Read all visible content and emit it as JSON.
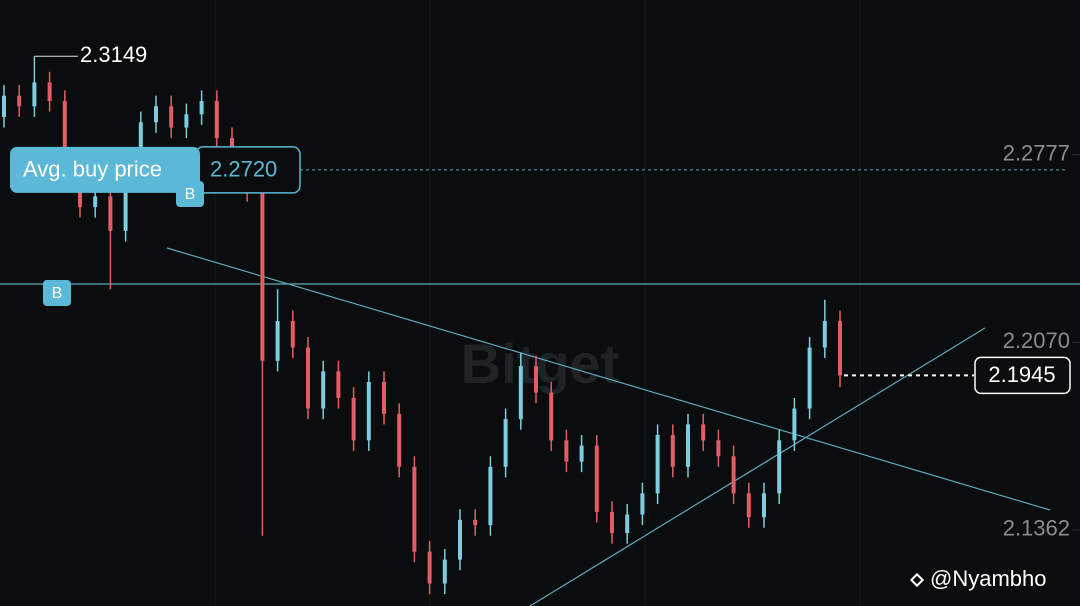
{
  "chart_data": {
    "type": "candlestick",
    "open": [
      2.292,
      2.3,
      2.296,
      2.305,
      2.298,
      2.275,
      2.258,
      2.262,
      2.249,
      2.271,
      2.29,
      2.296,
      2.288,
      2.293,
      2.298,
      2.284,
      2.27,
      2.264,
      2.2,
      2.215,
      2.205,
      2.182,
      2.196,
      2.186,
      2.17,
      2.192,
      2.18,
      2.16,
      2.128,
      2.116,
      2.125,
      2.14,
      2.138,
      2.16,
      2.178,
      2.198,
      2.188,
      2.17,
      2.162,
      2.168,
      2.143,
      2.135,
      2.142,
      2.15,
      2.172,
      2.16,
      2.176,
      2.17,
      2.164,
      2.15,
      2.141,
      2.15,
      2.17,
      2.182,
      2.205,
      2.215
    ],
    "high": [
      2.304,
      2.304,
      2.3149,
      2.309,
      2.302,
      2.279,
      2.266,
      2.266,
      2.275,
      2.294,
      2.3,
      2.3,
      2.297,
      2.302,
      2.302,
      2.288,
      2.274,
      2.268,
      2.227,
      2.219,
      2.209,
      2.2,
      2.2,
      2.19,
      2.196,
      2.196,
      2.184,
      2.164,
      2.132,
      2.129,
      2.144,
      2.144,
      2.164,
      2.182,
      2.203,
      2.202,
      2.192,
      2.174,
      2.172,
      2.172,
      2.147,
      2.146,
      2.154,
      2.176,
      2.176,
      2.18,
      2.18,
      2.174,
      2.168,
      2.154,
      2.154,
      2.174,
      2.186,
      2.209,
      2.223,
      2.219
    ],
    "low": [
      2.288,
      2.292,
      2.292,
      2.294,
      2.271,
      2.254,
      2.254,
      2.227,
      2.245,
      2.267,
      2.286,
      2.284,
      2.284,
      2.289,
      2.28,
      2.266,
      2.26,
      2.134,
      2.196,
      2.201,
      2.178,
      2.178,
      2.182,
      2.166,
      2.166,
      2.176,
      2.156,
      2.124,
      2.112,
      2.112,
      2.121,
      2.134,
      2.134,
      2.156,
      2.174,
      2.184,
      2.166,
      2.158,
      2.158,
      2.139,
      2.131,
      2.131,
      2.138,
      2.146,
      2.156,
      2.156,
      2.166,
      2.16,
      2.146,
      2.137,
      2.137,
      2.146,
      2.166,
      2.178,
      2.201,
      2.19
    ],
    "close": [
      2.3,
      2.296,
      2.305,
      2.298,
      2.275,
      2.258,
      2.262,
      2.249,
      2.271,
      2.29,
      2.296,
      2.288,
      2.293,
      2.298,
      2.284,
      2.27,
      2.264,
      2.2,
      2.215,
      2.205,
      2.182,
      2.196,
      2.186,
      2.17,
      2.192,
      2.18,
      2.16,
      2.128,
      2.116,
      2.125,
      2.14,
      2.138,
      2.16,
      2.178,
      2.198,
      2.188,
      2.17,
      2.162,
      2.168,
      2.143,
      2.135,
      2.142,
      2.15,
      2.172,
      2.16,
      2.176,
      2.17,
      2.164,
      2.15,
      2.141,
      2.15,
      2.17,
      2.182,
      2.205,
      2.215,
      2.1945
    ],
    "up_color": "#7ccde0",
    "down_color": "#e35d66",
    "ylim": [
      2.1075,
      2.3361
    ],
    "yticks": [
      2.2777,
      {
        "value": 2.207,
        "label": "2.2070"
      },
      2.1362
    ],
    "max_price": 2.3149,
    "last_price": 2.1945,
    "avg_buy": {
      "label": "Avg. buy price",
      "value": 2.272,
      "value_label": "2.2720"
    },
    "buy_markers": [
      "B",
      "B"
    ],
    "watermark": "Bitget",
    "author": "@Nyambho"
  }
}
